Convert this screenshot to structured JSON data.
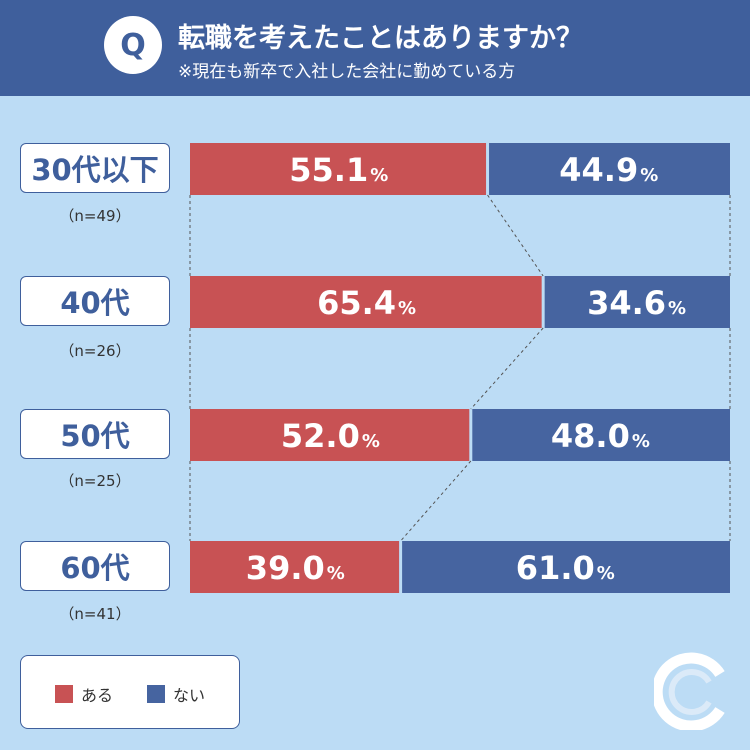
{
  "header": {
    "badge": "Q",
    "title": "転職を考えたことはありますか？",
    "subtitle": "※現在も新卒で入社した会社に勤めている方"
  },
  "colors": {
    "aru": "#c85254",
    "nai": "#4664a0",
    "header_bg": "#3f5f9c",
    "page_bg": "#bcdcf5"
  },
  "rows": [
    {
      "category": "30代以下",
      "n": "（n=49）"
    },
    {
      "category": "40代",
      "n": "（n=26）"
    },
    {
      "category": "50代",
      "n": "（n=25）"
    },
    {
      "category": "60代",
      "n": "（n=41）"
    }
  ],
  "legend": {
    "aru": "ある",
    "nai": "ない"
  },
  "chart_data": {
    "type": "bar",
    "stacked": "100%",
    "orientation": "horizontal",
    "categories": [
      "30代以下",
      "40代",
      "50代",
      "60代"
    ],
    "series": [
      {
        "name": "ある",
        "values": [
          55.1,
          65.4,
          52.0,
          39.0
        ]
      },
      {
        "name": "ない",
        "values": [
          44.9,
          34.6,
          48.0,
          61.0
        ]
      }
    ],
    "value_suffix": "%",
    "connector_lines": true,
    "legend_position": "bottom-left"
  },
  "logo": {
    "icon": "c-logo-icon"
  }
}
